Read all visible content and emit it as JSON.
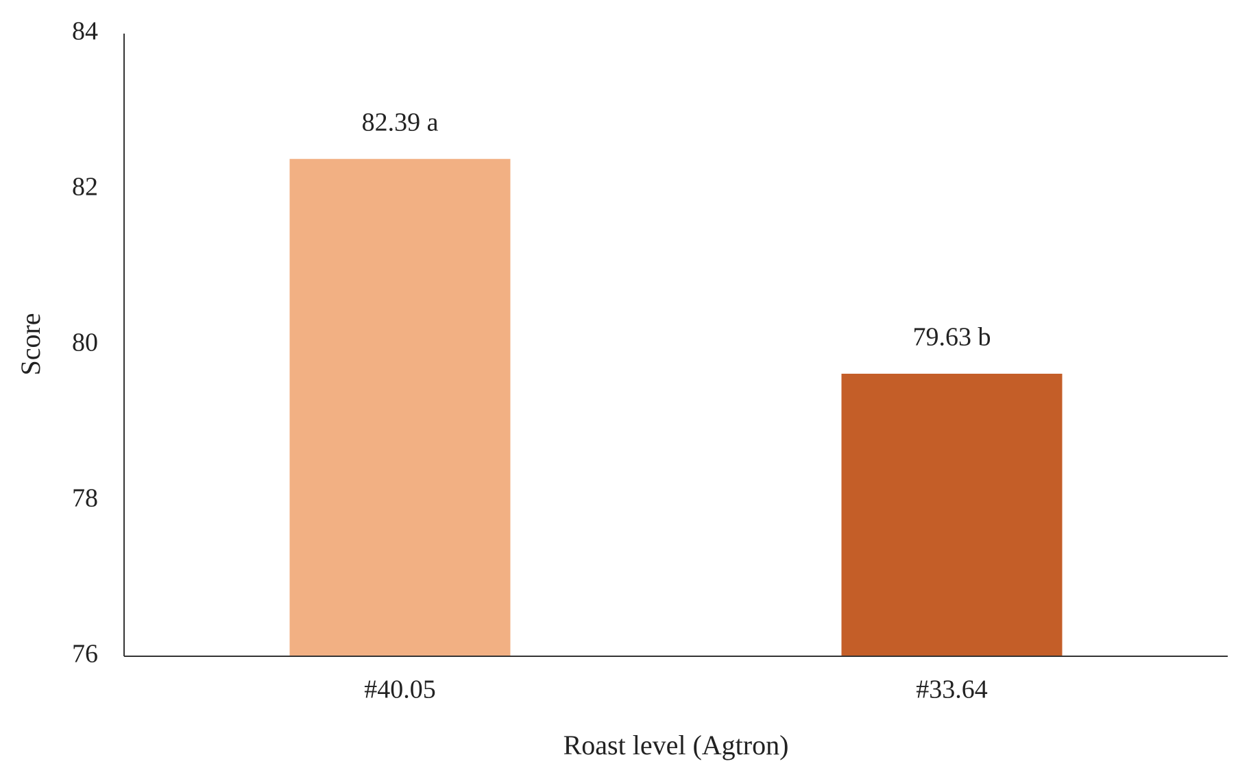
{
  "chart_data": {
    "type": "bar",
    "x_label": "Roast level (Agtron)",
    "y_label": "Score",
    "categories": [
      "#40.05",
      "#33.64"
    ],
    "values": [
      82.39,
      79.63
    ],
    "value_labels": [
      "82.39 a",
      "79.63 b"
    ],
    "colors": [
      "#f2b083",
      "#c45e28"
    ],
    "ylim": [
      76,
      84
    ],
    "yticks": [
      76,
      78,
      80,
      82,
      84
    ],
    "grid": false
  }
}
